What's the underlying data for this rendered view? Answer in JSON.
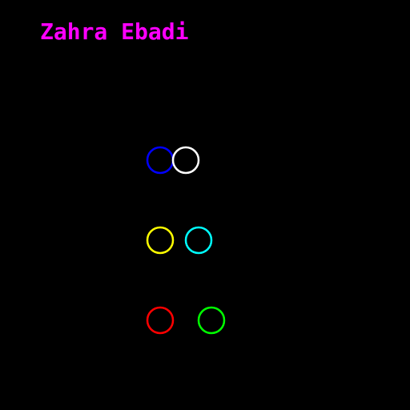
{
  "title": {
    "text": "Zahra Ebadi",
    "color": "#ff00ff"
  },
  "circles": [
    {
      "name": "blue-circle",
      "color": "#0000ff"
    },
    {
      "name": "white-circle",
      "color": "#ffffff"
    },
    {
      "name": "yellow-circle",
      "color": "#ffff00"
    },
    {
      "name": "cyan-circle",
      "color": "#00ffff"
    },
    {
      "name": "red-circle",
      "color": "#ff0000"
    },
    {
      "name": "green-circle",
      "color": "#00ff00"
    }
  ],
  "background": "#000000"
}
